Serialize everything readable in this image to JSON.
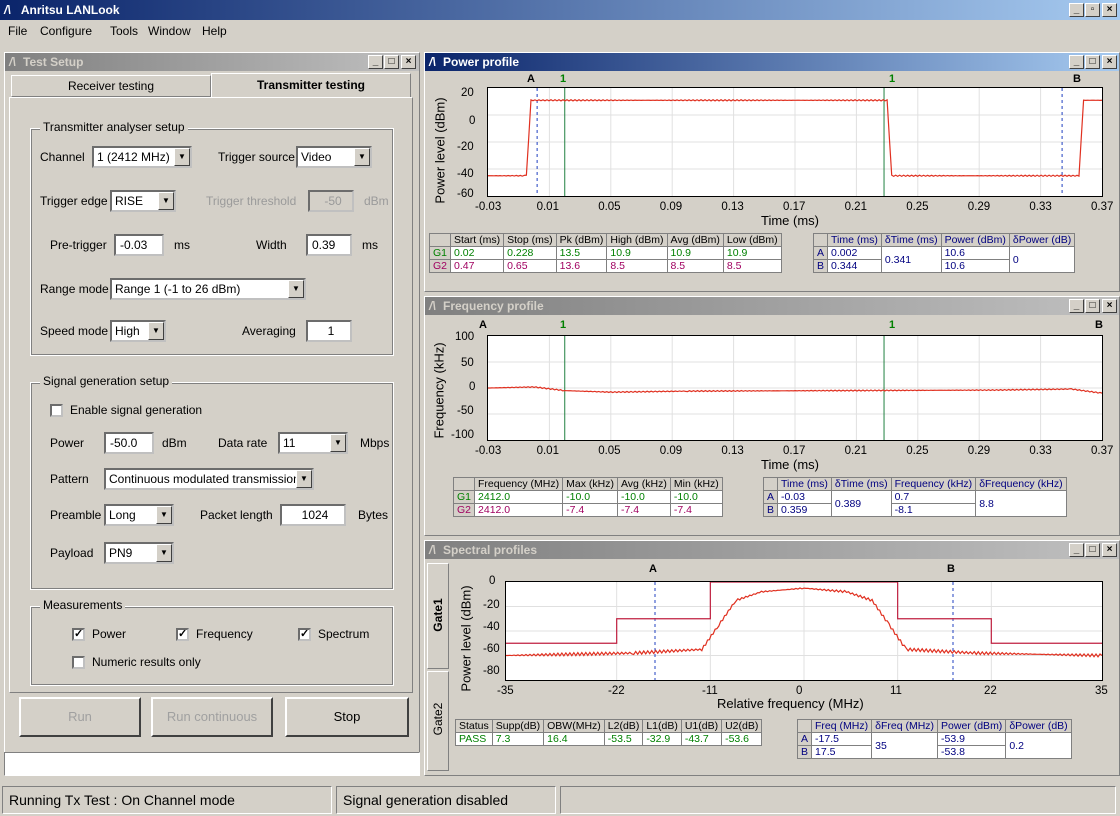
{
  "app": {
    "title": "Anritsu LANLook",
    "menu": [
      "File",
      "Configure",
      "Tools",
      "Window",
      "Help"
    ]
  },
  "test_setup": {
    "title": "Test Setup",
    "tabs": [
      "Receiver testing",
      "Transmitter testing"
    ],
    "tx_group": "Transmitter analyser setup",
    "channel_label": "Channel",
    "channel_value": "1 (2412 MHz)",
    "trigger_source_label": "Trigger source",
    "trigger_source_value": "Video",
    "trigger_edge_label": "Trigger edge",
    "trigger_edge_value": "RISE",
    "trigger_threshold_label": "Trigger threshold",
    "trigger_threshold_value": "-50",
    "dbm": "dBm",
    "pretrigger_label": "Pre-trigger",
    "pretrigger_value": "-0.03",
    "ms": "ms",
    "width_label": "Width",
    "width_value": "0.39",
    "range_label": "Range mode",
    "range_value": "Range 1 (-1 to 26 dBm)",
    "speed_label": "Speed mode",
    "speed_value": "High",
    "averaging_label": "Averaging",
    "averaging_value": "1",
    "sig_group": "Signal generation setup",
    "enable_sig": "Enable signal generation",
    "power_label": "Power",
    "power_value": "-50.0",
    "datarate_label": "Data rate",
    "datarate_value": "11",
    "mbps": "Mbps",
    "pattern_label": "Pattern",
    "pattern_value": "Continuous modulated transmission",
    "preamble_label": "Preamble",
    "preamble_value": "Long",
    "packet_label": "Packet length",
    "packet_value": "1024",
    "bytes": "Bytes",
    "payload_label": "Payload",
    "payload_value": "PN9",
    "meas_group": "Measurements",
    "meas_power": "Power",
    "meas_freq": "Frequency",
    "meas_spectrum": "Spectrum",
    "numeric_only": "Numeric results only",
    "run": "Run",
    "run_cont": "Run continuous",
    "stop": "Stop"
  },
  "status": {
    "left": "Running Tx Test : On Channel mode",
    "right": "Signal generation disabled"
  },
  "power_profile": {
    "title": "Power profile",
    "markers": [
      "A",
      "1",
      "1",
      "B"
    ],
    "ylabel": "Power level (dBm)",
    "xlabel": "Time (ms)",
    "yticks": [
      "20",
      "0",
      "-20",
      "-40",
      "-60"
    ],
    "xticks": [
      "-0.03",
      "0.01",
      "0.05",
      "0.09",
      "0.13",
      "0.17",
      "0.21",
      "0.25",
      "0.29",
      "0.33",
      "0.37"
    ],
    "table_headers": [
      "",
      "Start (ms)",
      "Stop (ms)",
      "Pk (dBm)",
      "High (dBm)",
      "Avg (dBm)",
      "Low (dBm)"
    ],
    "rows": [
      [
        "G1",
        "0.02",
        "0.228",
        "13.5",
        "10.9",
        "10.9",
        "10.9"
      ],
      [
        "G2",
        "0.47",
        "0.65",
        "13.6",
        "8.5",
        "8.5",
        "8.5"
      ]
    ],
    "cursor_headers": [
      "",
      "Time (ms)",
      "δTime (ms)",
      "Power (dBm)",
      "δPower (dB)"
    ],
    "cursor_A": [
      "A",
      "0.002",
      "10.6"
    ],
    "cursor_B": [
      "B",
      "0.344",
      "10.6"
    ],
    "dtime": "0.341",
    "dpower": "0"
  },
  "freq_profile": {
    "title": "Frequency profile",
    "markers": [
      "A",
      "1",
      "1",
      "B"
    ],
    "ylabel": "Frequency (kHz)",
    "xlabel": "Time (ms)",
    "yticks": [
      "100",
      "50",
      "0",
      "-50",
      "-100"
    ],
    "xticks": [
      "-0.03",
      "0.01",
      "0.05",
      "0.09",
      "0.13",
      "0.17",
      "0.21",
      "0.25",
      "0.29",
      "0.33",
      "0.37"
    ],
    "table_headers": [
      "",
      "Frequency (MHz)",
      "Max (kHz)",
      "Avg (kHz)",
      "Min (kHz)"
    ],
    "rows": [
      [
        "G1",
        "2412.0",
        "-10.0",
        "-10.0",
        "-10.0"
      ],
      [
        "G2",
        "2412.0",
        "-7.4",
        "-7.4",
        "-7.4"
      ]
    ],
    "cursor_headers": [
      "",
      "Time (ms)",
      "δTime (ms)",
      "Frequency (kHz)",
      "δFrequency (kHz)"
    ],
    "cursor_A": [
      "A",
      "-0.03",
      "0.7"
    ],
    "cursor_B": [
      "B",
      "0.359",
      "-8.1"
    ],
    "dtime": "0.389",
    "dfreq": "8.8"
  },
  "spectral": {
    "title": "Spectral profiles",
    "tabs": [
      "Gate1",
      "Gate2"
    ],
    "markers": [
      "A",
      "B"
    ],
    "ylabel": "Power level (dBm)",
    "xlabel": "Relative frequency (MHz)",
    "yticks": [
      "0",
      "-20",
      "-40",
      "-60",
      "-80"
    ],
    "xticks": [
      "-35",
      "-22",
      "-11",
      "0",
      "11",
      "22",
      "35"
    ],
    "table_headers": [
      "Status",
      "Supp(dB)",
      "OBW(MHz)",
      "L2(dB)",
      "L1(dB)",
      "U1(dB)",
      "U2(dB)"
    ],
    "row": [
      "PASS",
      "7.3",
      "16.4",
      "-53.5",
      "-32.9",
      "-43.7",
      "-53.6"
    ],
    "cursor_headers": [
      "",
      "Freq (MHz)",
      "δFreq (MHz)",
      "Power (dBm)",
      "δPower (dB)"
    ],
    "cursor_A": [
      "A",
      "-17.5",
      "-53.9"
    ],
    "cursor_B": [
      "B",
      "17.5",
      "-53.8"
    ],
    "dfreq": "35",
    "dpower": "0.2"
  },
  "chart_data": [
    {
      "type": "line",
      "title": "Power profile",
      "xlabel": "Time (ms)",
      "ylabel": "Power level (dBm)",
      "xlim": [
        -0.03,
        0.37
      ],
      "ylim": [
        -60,
        20
      ],
      "series": [
        {
          "x": [
            -0.03,
            -0.005,
            -0.002,
            0.23,
            0.233,
            0.355,
            0.358,
            0.37
          ],
          "values": [
            -45,
            -45,
            10.9,
            10.9,
            -45,
            -45,
            10.9,
            10.9
          ]
        }
      ]
    },
    {
      "type": "line",
      "title": "Frequency profile",
      "xlabel": "Time (ms)",
      "ylabel": "Frequency (kHz)",
      "xlim": [
        -0.03,
        0.37
      ],
      "ylim": [
        -100,
        100
      ],
      "series": [
        {
          "x": [
            -0.03,
            0.0,
            0.02,
            0.05,
            0.1,
            0.2,
            0.3,
            0.35,
            0.37
          ],
          "values": [
            0,
            2,
            -5,
            -8,
            -6,
            -5,
            -4,
            -2,
            -10
          ]
        }
      ]
    },
    {
      "type": "line",
      "title": "Spectral profiles",
      "xlabel": "Relative frequency (MHz)",
      "ylabel": "Power level (dBm)",
      "xlim": [
        -35,
        35
      ],
      "ylim": [
        -80,
        0
      ],
      "series": [
        {
          "name": "mask",
          "x": [
            -35,
            -22,
            -22,
            -11,
            -11,
            11,
            11,
            22,
            22,
            35
          ],
          "values": [
            -50,
            -50,
            -30,
            -30,
            0,
            0,
            -30,
            -30,
            -50,
            -50
          ]
        },
        {
          "name": "spectrum",
          "x": [
            -35,
            -20,
            -12,
            -10,
            -8,
            -5,
            0,
            5,
            8,
            10,
            12,
            20,
            35
          ],
          "values": [
            -60,
            -58,
            -55,
            -35,
            -15,
            -8,
            -5,
            -8,
            -15,
            -35,
            -55,
            -58,
            -60
          ]
        }
      ]
    }
  ]
}
